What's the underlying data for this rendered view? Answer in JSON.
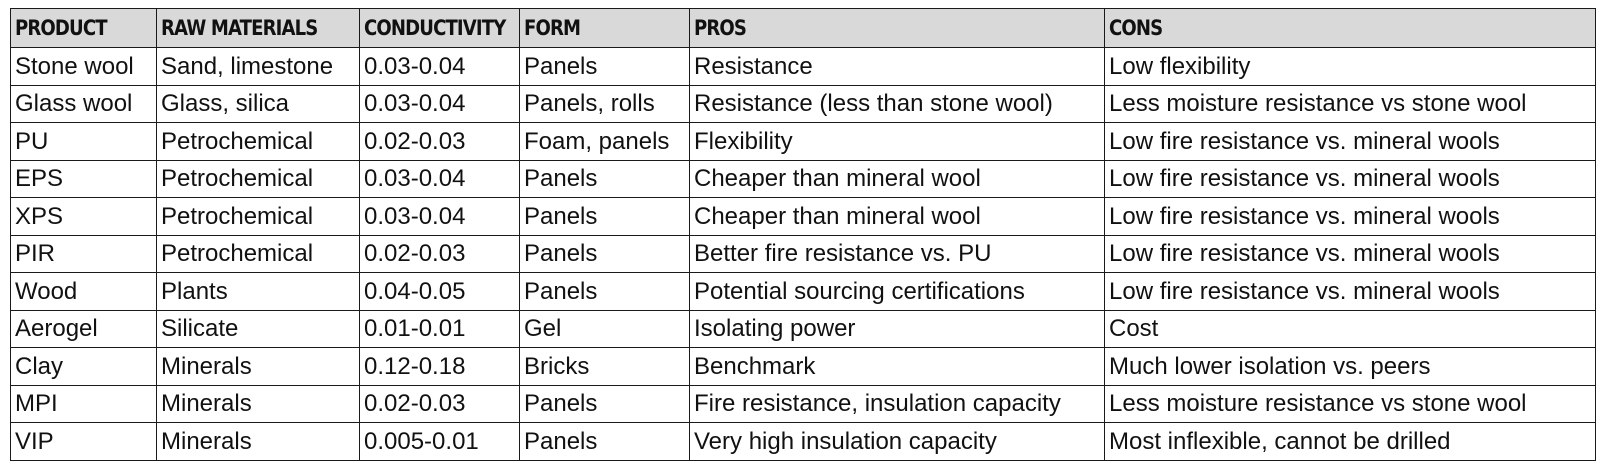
{
  "table": {
    "headers": [
      "PRODUCT",
      "RAW MATERIALS",
      "CONDUCTIVITY",
      "FORM",
      "PROS",
      "CONS"
    ],
    "rows": [
      [
        "Stone wool",
        "Sand, limestone",
        "0.03-0.04",
        "Panels",
        "Resistance",
        "Low flexibility"
      ],
      [
        "Glass wool",
        "Glass, silica",
        "0.03-0.04",
        "Panels, rolls",
        "Resistance (less than stone wool)",
        "Less moisture resistance vs stone wool"
      ],
      [
        "PU",
        "Petrochemical",
        "0.02-0.03",
        "Foam, panels",
        "Flexibility",
        "Low fire resistance vs. mineral wools"
      ],
      [
        "EPS",
        "Petrochemical",
        "0.03-0.04",
        "Panels",
        "Cheaper than mineral wool",
        "Low fire resistance vs. mineral wools"
      ],
      [
        "XPS",
        "Petrochemical",
        "0.03-0.04",
        "Panels",
        "Cheaper than mineral wool",
        "Low fire resistance vs. mineral wools"
      ],
      [
        "PIR",
        "Petrochemical",
        "0.02-0.03",
        "Panels",
        "Better fire resistance vs. PU",
        "Low fire resistance vs. mineral wools"
      ],
      [
        "Wood",
        "Plants",
        "0.04-0.05",
        "Panels",
        "Potential sourcing certifications",
        "Low fire resistance vs. mineral wools"
      ],
      [
        "Aerogel",
        "Silicate",
        "0.01-0.01",
        "Gel",
        "Isolating power",
        "Cost"
      ],
      [
        "Clay",
        "Minerals",
        "0.12-0.18",
        "Bricks",
        "Benchmark",
        "Much lower isolation vs. peers"
      ],
      [
        "MPI",
        "Minerals",
        "0.02-0.03",
        "Panels",
        "Fire resistance, insulation capacity",
        "Less moisture resistance vs stone wool"
      ],
      [
        "VIP",
        "Minerals",
        "0.005-0.01",
        "Panels",
        "Very high insulation capacity",
        "Most inflexible, cannot be drilled"
      ]
    ]
  }
}
